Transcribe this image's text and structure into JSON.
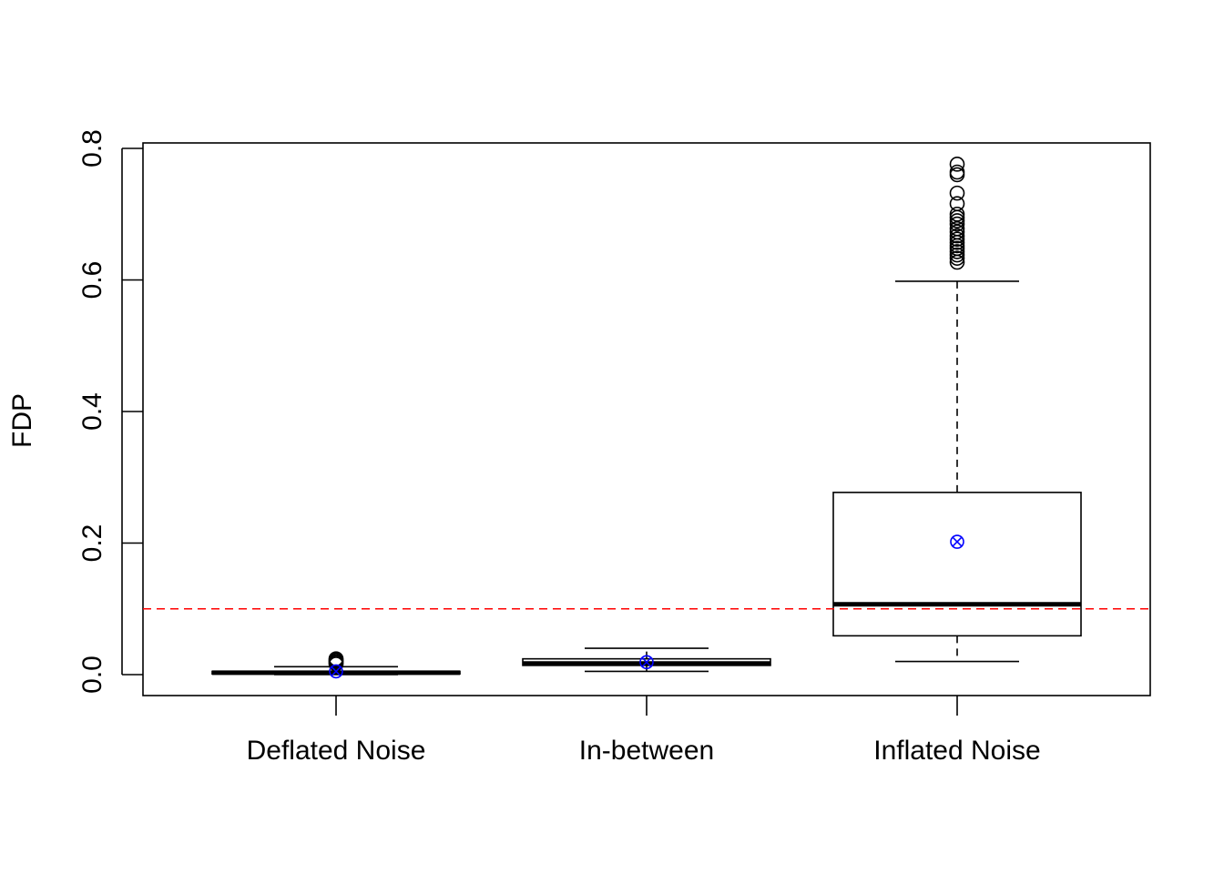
{
  "chart_data": {
    "type": "boxplot",
    "title": "",
    "xlabel": "",
    "ylabel": "FDP",
    "ylim": [
      -0.03,
      0.81
    ],
    "yticks": [
      "0.0",
      "0.2",
      "0.4",
      "0.6",
      "0.8"
    ],
    "ytick_values": [
      0.0,
      0.2,
      0.4,
      0.6,
      0.8
    ],
    "grid": false,
    "reference_line": {
      "y": 0.1,
      "color": "#ff0000",
      "style": "dashed"
    },
    "mean_marker_color": "#0000ff",
    "categories": [
      "Deflated Noise",
      "In-between",
      "Inflated Noise"
    ],
    "boxes": [
      {
        "name": "Deflated Noise",
        "whisker_low": 0.0,
        "q1": 0.001,
        "median": 0.003,
        "q3": 0.005,
        "whisker_high": 0.012,
        "mean": 0.005,
        "outliers": [
          0.016,
          0.018,
          0.02,
          0.022,
          0.024
        ]
      },
      {
        "name": "In-between",
        "whisker_low": 0.005,
        "q1": 0.014,
        "median": 0.017,
        "q3": 0.024,
        "whisker_high": 0.04,
        "mean": 0.019,
        "outliers": []
      },
      {
        "name": "Inflated Noise",
        "whisker_low": 0.02,
        "q1": 0.059,
        "median": 0.107,
        "q3": 0.277,
        "whisker_high": 0.598,
        "mean": 0.202,
        "outliers": [
          0.627,
          0.633,
          0.638,
          0.643,
          0.648,
          0.652,
          0.657,
          0.662,
          0.667,
          0.673,
          0.678,
          0.685,
          0.69,
          0.695,
          0.7,
          0.716,
          0.732,
          0.76,
          0.764,
          0.776
        ]
      }
    ]
  }
}
